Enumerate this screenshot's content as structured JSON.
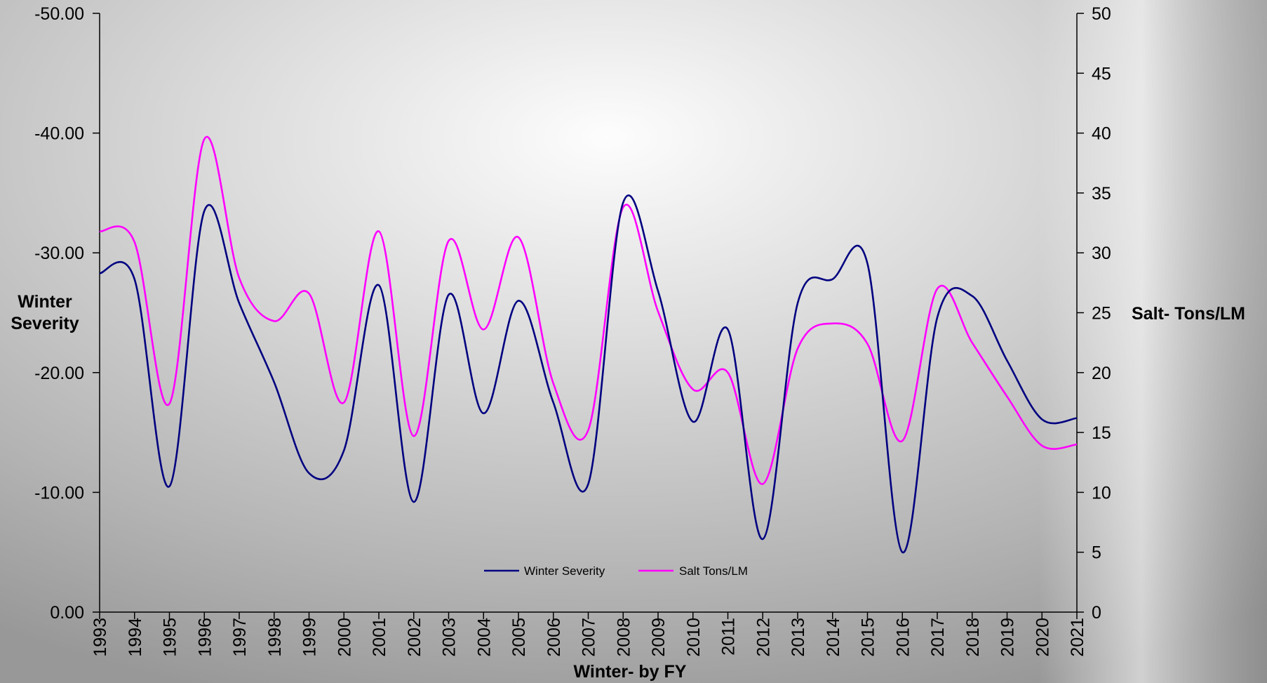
{
  "chart_data": {
    "type": "line",
    "xlabel": "Winter- by FY",
    "ylabel_left": [
      "Winter",
      "Severity"
    ],
    "ylabel_right": "Salt- Tons/LM",
    "categories": [
      "1993",
      "1994",
      "1995",
      "1996",
      "1997",
      "1998",
      "1999",
      "2000",
      "2001",
      "2002",
      "2003",
      "2004",
      "2005",
      "2006",
      "2007",
      "2008",
      "2009",
      "2010",
      "2011",
      "2012",
      "2013",
      "2014",
      "2015",
      "2016",
      "2017",
      "2018",
      "2019",
      "2020",
      "2021"
    ],
    "left_axis": {
      "min": 0,
      "max": -50,
      "step": -10,
      "ticks": [
        "-50.00",
        "-40.00",
        "-30.00",
        "-20.00",
        "-10.00",
        "0.00"
      ],
      "tick_values": [
        -50,
        -40,
        -30,
        -20,
        -10,
        0
      ]
    },
    "right_axis": {
      "min": 0,
      "max": 50,
      "step": 5,
      "ticks": [
        "50",
        "45",
        "40",
        "35",
        "30",
        "25",
        "20",
        "15",
        "10",
        "5",
        "0"
      ],
      "tick_values": [
        50,
        45,
        40,
        35,
        30,
        25,
        20,
        15,
        10,
        5,
        0
      ]
    },
    "series": [
      {
        "name": "Winter Severity",
        "axis": "left",
        "color": "#000080",
        "values": [
          -28.3,
          -27.8,
          -10.5,
          -33.5,
          -25.8,
          -19.2,
          -11.6,
          -13.5,
          -27.3,
          -9.2,
          -26.5,
          -16.6,
          -26.0,
          -17.5,
          -10.7,
          -34.2,
          -26.8,
          -15.9,
          -23.6,
          -6.1,
          -25.8,
          -27.8,
          -29.1,
          -5.0,
          -24.6,
          -26.4,
          -21.0,
          -16.1,
          -16.2
        ]
      },
      {
        "name": "Salt  Tons/LM",
        "axis": "right",
        "color": "#ff00ff",
        "values": [
          31.8,
          30.9,
          17.4,
          39.5,
          27.9,
          24.3,
          26.6,
          17.5,
          31.8,
          14.7,
          31.0,
          23.6,
          31.3,
          19.1,
          15.2,
          33.8,
          25.1,
          18.6,
          20.0,
          10.7,
          22.0,
          24.1,
          22.4,
          14.3,
          27.0,
          22.5,
          18.0,
          13.9,
          14.0
        ]
      }
    ],
    "legend": {
      "placement": "bottom-center"
    },
    "grid": false
  }
}
